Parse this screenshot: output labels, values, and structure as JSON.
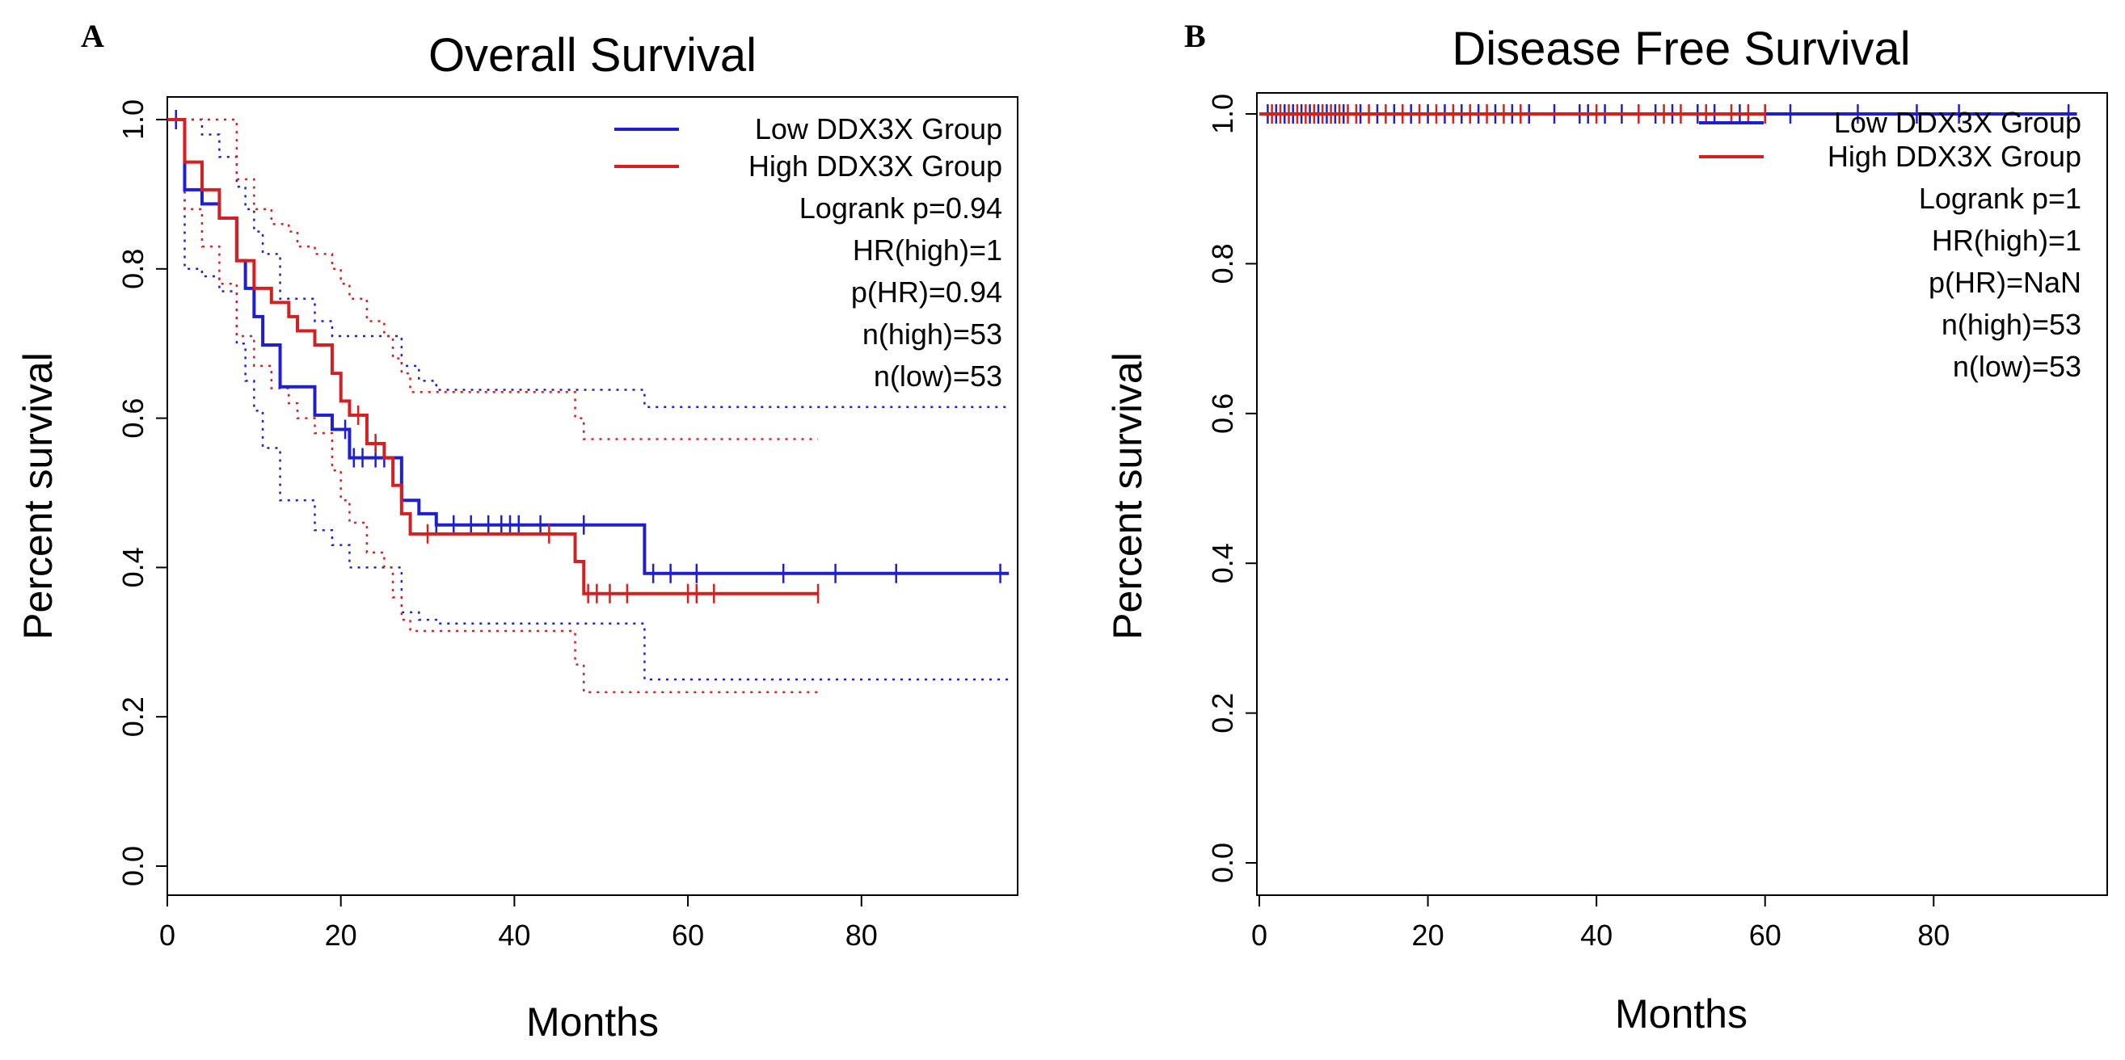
{
  "chart_data": [
    {
      "type": "line",
      "panel": "A",
      "title": "Overall Survival",
      "xlabel": "Months",
      "ylabel": "Percent survival",
      "xlim": [
        0,
        98
      ],
      "ylim": [
        0,
        1.0
      ],
      "xticks": [
        0,
        20,
        40,
        60,
        80
      ],
      "yticks": [
        0.0,
        0.2,
        0.4,
        0.6,
        0.8,
        1.0
      ],
      "xtick_labels": [
        "0",
        "20",
        "40",
        "60",
        "80"
      ],
      "ytick_labels": [
        "0.0",
        "0.2",
        "0.4",
        "0.6",
        "0.8",
        "1.0"
      ],
      "legend": [
        {
          "name": "Low DDX3X Group",
          "color": "#1f1fcf"
        },
        {
          "name": "High DDX3X Group",
          "color": "#d42020"
        }
      ],
      "stats": [
        "Logrank p=0.94",
        "HR(high)=1",
        "p(HR)=0.94",
        "n(high)=53",
        "n(low)=53"
      ],
      "series": [
        {
          "name": "Low DDX3X Group",
          "color": "#1f1fcf",
          "x": [
            0,
            2,
            4,
            6,
            8,
            9,
            10,
            11,
            13,
            17,
            19,
            21,
            27,
            29,
            31,
            55,
            97
          ],
          "y": [
            1.0,
            0.906,
            0.887,
            0.868,
            0.811,
            0.774,
            0.736,
            0.698,
            0.642,
            0.604,
            0.585,
            0.547,
            0.49,
            0.472,
            0.457,
            0.392,
            0.392
          ],
          "upper": [
            1.0,
            1.0,
            0.98,
            0.95,
            0.91,
            0.88,
            0.85,
            0.82,
            0.76,
            0.73,
            0.71,
            0.71,
            0.67,
            0.65,
            0.638,
            0.615,
            0.615
          ],
          "lower": [
            1.0,
            0.8,
            0.79,
            0.77,
            0.7,
            0.65,
            0.61,
            0.56,
            0.49,
            0.45,
            0.43,
            0.4,
            0.34,
            0.33,
            0.325,
            0.25,
            0.25
          ],
          "censor": [
            1,
            20.5,
            21.5,
            22.5,
            24,
            25,
            31,
            33,
            35,
            37,
            38.5,
            39.5,
            40.5,
            43,
            48,
            56,
            58,
            61,
            71,
            77,
            84,
            96
          ]
        },
        {
          "name": "High DDX3X Group",
          "color": "#d42020",
          "x": [
            0,
            2,
            4,
            6,
            8,
            10,
            12,
            14,
            15,
            17,
            19,
            20,
            21,
            23,
            25,
            26,
            27,
            28,
            47,
            48,
            75
          ],
          "y": [
            1.0,
            0.943,
            0.906,
            0.868,
            0.811,
            0.774,
            0.755,
            0.736,
            0.717,
            0.698,
            0.66,
            0.623,
            0.604,
            0.566,
            0.547,
            0.51,
            0.472,
            0.445,
            0.408,
            0.365,
            0.365
          ],
          "upper": [
            1.0,
            1.0,
            1.0,
            1.0,
            0.92,
            0.88,
            0.86,
            0.85,
            0.83,
            0.82,
            0.8,
            0.78,
            0.76,
            0.73,
            0.71,
            0.68,
            0.66,
            0.635,
            0.6,
            0.572,
            0.572
          ],
          "lower": [
            1.0,
            0.88,
            0.83,
            0.78,
            0.71,
            0.67,
            0.64,
            0.62,
            0.6,
            0.58,
            0.53,
            0.49,
            0.46,
            0.42,
            0.4,
            0.36,
            0.33,
            0.315,
            0.27,
            0.233,
            0.233
          ],
          "censor": [
            22,
            24,
            30,
            44,
            48.5,
            49.5,
            51,
            53,
            60,
            61,
            63,
            75
          ]
        }
      ]
    },
    {
      "type": "line",
      "panel": "B",
      "title": "Disease Free Survival",
      "xlabel": "Months",
      "ylabel": "Percent survival",
      "xlim": [
        0,
        98
      ],
      "ylim": [
        0,
        1.0
      ],
      "xticks": [
        0,
        20,
        40,
        60,
        80
      ],
      "yticks": [
        0.0,
        0.2,
        0.4,
        0.6,
        0.8,
        1.0
      ],
      "xtick_labels": [
        "0",
        "20",
        "40",
        "60",
        "80"
      ],
      "ytick_labels": [
        "0.0",
        "0.2",
        "0.4",
        "0.6",
        "0.8",
        "1.0"
      ],
      "legend": [
        {
          "name": "Low DDX3X Group",
          "color": "#1f1fcf"
        },
        {
          "name": "High DDX3X Group",
          "color": "#d42020"
        }
      ],
      "stats": [
        "Logrank p=1",
        "HR(high)=1",
        "p(HR)=NaN",
        "n(high)=53",
        "n(low)=53"
      ],
      "series": [
        {
          "name": "Low DDX3X Group",
          "color": "#1f1fcf",
          "x": [
            0,
            97
          ],
          "y": [
            1.0,
            1.0
          ],
          "censor": [
            1,
            2,
            3,
            4,
            5,
            6,
            7,
            8,
            9,
            10,
            12,
            14,
            16,
            18,
            20,
            22,
            24,
            26,
            28,
            30,
            32,
            35,
            38,
            39,
            41,
            43,
            47,
            49,
            52,
            54,
            57,
            60,
            63,
            71,
            78,
            83,
            96
          ]
        },
        {
          "name": "High DDX3X Group",
          "color": "#d42020",
          "x": [
            0,
            60
          ],
          "y": [
            1.0,
            1.0
          ],
          "censor": [
            1.5,
            2.5,
            3.5,
            4.5,
            5.5,
            6.5,
            7.5,
            8.5,
            9.5,
            10.5,
            11.5,
            13,
            15,
            17,
            19,
            21,
            23,
            25,
            27,
            29,
            31,
            40,
            45,
            48,
            50,
            53,
            56,
            58,
            60
          ]
        }
      ]
    }
  ]
}
